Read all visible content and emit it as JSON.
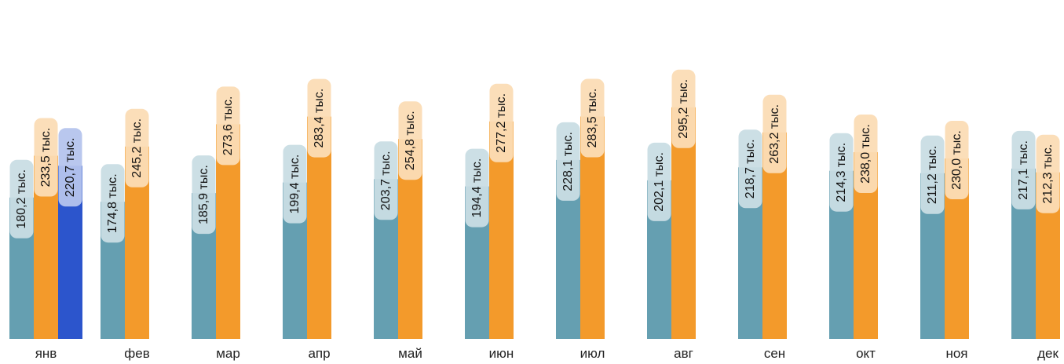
{
  "chart_data": {
    "type": "bar",
    "categories": [
      "янв",
      "фев",
      "мар",
      "апр",
      "май",
      "июн",
      "июл",
      "авг",
      "сен",
      "окт",
      "ноя",
      "дек"
    ],
    "series": [
      {
        "color": "#659fb1",
        "values": [
          180.2,
          174.8,
          185.9,
          199.4,
          203.7,
          194.4,
          228.1,
          202.1,
          218.7,
          214.3,
          211.2,
          217.1
        ],
        "labels": [
          "180,2 тыс.",
          "174,8 тыс.",
          "185,9 тыс.",
          "199,4 тыс.",
          "203,7 тыс.",
          "194,4 тыс.",
          "228,1 тыс.",
          "202,1 тыс.",
          "218,7 тыс.",
          "214,3 тыс.",
          "211,2 тыс.",
          "217,1 тыс."
        ]
      },
      {
        "color": "#f39a2b",
        "values": [
          233.5,
          245.2,
          273.6,
          283.4,
          254.8,
          277.2,
          283.5,
          295.2,
          263.2,
          238.0,
          230.0,
          212.3
        ],
        "labels": [
          "233,5 тыс.",
          "245,2 тыс.",
          "273,6 тыс.",
          "283,4 тыс.",
          "254,8 тыс.",
          "277,2 тыс.",
          "283,5 тыс.",
          "295,2 тыс.",
          "263,2 тыс.",
          "238,0 тыс.",
          "230,0 тыс.",
          "212,3 тыс."
        ]
      },
      {
        "color": "#2c55cc",
        "values": [
          220.7,
          null,
          null,
          null,
          null,
          null,
          null,
          null,
          null,
          null,
          null,
          null
        ],
        "labels": [
          "220,7 тыс.",
          null,
          null,
          null,
          null,
          null,
          null,
          null,
          null,
          null,
          null,
          null
        ]
      }
    ],
    "ylim": [
      0,
      300
    ],
    "grid": false,
    "legend": "none",
    "title": "",
    "xlabel": "",
    "ylabel": ""
  }
}
